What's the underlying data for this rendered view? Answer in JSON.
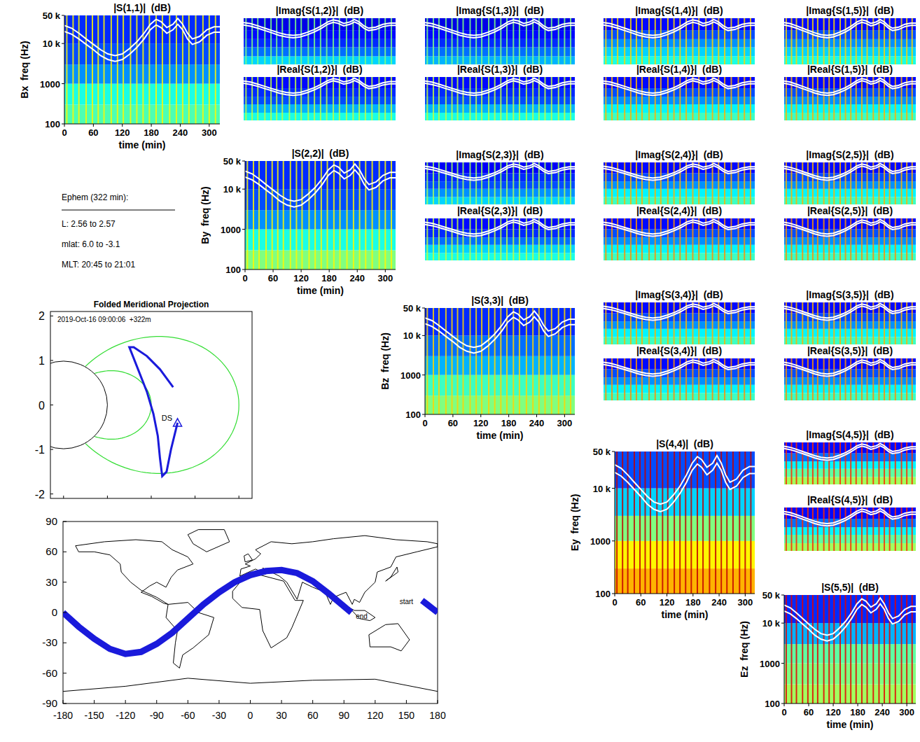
{
  "chart_data": [
    {
      "type": "spectrogram_matrix",
      "xlim": [
        0,
        322
      ],
      "ylim": [
        100,
        50000
      ],
      "log": "y",
      "xticks": [
        0,
        60,
        120,
        180,
        240,
        300
      ],
      "yticks": [
        100,
        1000,
        {
          "value": 10000,
          "label": "10 k"
        },
        {
          "value": 50000,
          "label": "50 k"
        }
      ],
      "xlabel": "time (min)",
      "band_edges": [
        100,
        300,
        1000,
        3000,
        10000,
        50000
      ],
      "clim": [
        -60,
        0
      ],
      "impulse_times": [
        5,
        18,
        30,
        45,
        58,
        70,
        82,
        97,
        110,
        122,
        137,
        150,
        163,
        176,
        190,
        203,
        218,
        232,
        245,
        258,
        272,
        287,
        300,
        313
      ],
      "cutoff_curves": {
        "x": [
          0,
          15,
          30,
          45,
          60,
          75,
          90,
          105,
          120,
          135,
          150,
          165,
          178,
          190,
          200,
          212,
          225,
          235,
          245,
          255,
          265,
          280,
          295,
          310,
          322
        ],
        "upper": [
          28000,
          24000,
          18000,
          13000,
          9500,
          7000,
          5500,
          5000,
          5500,
          7500,
          11000,
          18000,
          30000,
          40000,
          35000,
          25000,
          30000,
          42000,
          30000,
          18000,
          13000,
          15000,
          22000,
          26000,
          26000
        ],
        "lower": [
          20000,
          17000,
          13000,
          9500,
          7000,
          5000,
          4000,
          3600,
          4000,
          5400,
          8000,
          13000,
          22000,
          29000,
          25000,
          18000,
          22000,
          30000,
          22000,
          13000,
          9500,
          11000,
          16000,
          19000,
          19000
        ]
      },
      "panels": [
        {
          "title": "|S(1,1)|  (dB)",
          "ylabel": "Bx  freq (Hz)",
          "levels": [
            -33,
            -36,
            -44,
            -48,
            -50
          ],
          "impulse_level": -22
        },
        {
          "title": "|Imag{S(1,2)}|  (dB)",
          "levels": [
            -40,
            -46,
            -50,
            -52,
            -54
          ],
          "impulse_level": -30
        },
        {
          "title": "|Real{S(1,2)}|  (dB)",
          "levels": [
            -36,
            -42,
            -48,
            -50,
            -52
          ],
          "impulse_level": -26
        },
        {
          "title": "|Imag{S(1,3)}|  (dB)",
          "levels": [
            -42,
            -46,
            -50,
            -52,
            -54
          ],
          "impulse_level": -30
        },
        {
          "title": "|Real{S(1,3)}|  (dB)",
          "levels": [
            -36,
            -42,
            -48,
            -50,
            -52
          ],
          "impulse_level": -26
        },
        {
          "title": "|Imag{S(1,4)}|  (dB)",
          "levels": [
            -36,
            -40,
            -44,
            -48,
            -52
          ],
          "impulse_level": -20
        },
        {
          "title": "|Real{S(1,4)}|  (dB)",
          "levels": [
            -34,
            -38,
            -44,
            -48,
            -52
          ],
          "impulse_level": -18
        },
        {
          "title": "|Imag{S(1,5)}|  (dB)",
          "levels": [
            -36,
            -40,
            -44,
            -48,
            -52
          ],
          "impulse_level": -20
        },
        {
          "title": "|Real{S(1,5)}|  (dB)",
          "levels": [
            -34,
            -38,
            -44,
            -48,
            -52
          ],
          "impulse_level": -18
        },
        {
          "title": "|S(2,2)|  (dB)",
          "ylabel": "By  freq (Hz)",
          "levels": [
            -30,
            -36,
            -44,
            -48,
            -50
          ],
          "impulse_level": -22
        },
        {
          "title": "|Imag{S(2,3)}|  (dB)",
          "levels": [
            -40,
            -44,
            -48,
            -50,
            -53
          ],
          "impulse_level": -28
        },
        {
          "title": "|Real{S(2,3)}|  (dB)",
          "levels": [
            -36,
            -40,
            -46,
            -50,
            -52
          ],
          "impulse_level": -26
        },
        {
          "title": "|Imag{S(2,4)}|  (dB)",
          "levels": [
            -34,
            -38,
            -44,
            -48,
            -52
          ],
          "impulse_level": -18
        },
        {
          "title": "|Real{S(2,4)}|  (dB)",
          "levels": [
            -34,
            -38,
            -44,
            -48,
            -52
          ],
          "impulse_level": -16
        },
        {
          "title": "|Imag{S(2,5)}|  (dB)",
          "levels": [
            -34,
            -38,
            -44,
            -48,
            -52
          ],
          "impulse_level": -18
        },
        {
          "title": "|Real{S(2,5)}|  (dB)",
          "levels": [
            -34,
            -38,
            -44,
            -48,
            -52
          ],
          "impulse_level": -16
        },
        {
          "title": "|S(3,3)|  (dB)",
          "ylabel": "Bz  freq (Hz)",
          "levels": [
            -30,
            -34,
            -42,
            -46,
            -50
          ],
          "impulse_level": -20
        },
        {
          "title": "|Imag{S(3,4)}|  (dB)",
          "levels": [
            -34,
            -38,
            -44,
            -48,
            -52
          ],
          "impulse_level": -18
        },
        {
          "title": "|Real{S(3,4)}|  (dB)",
          "levels": [
            -34,
            -38,
            -44,
            -48,
            -52
          ],
          "impulse_level": -16
        },
        {
          "title": "|Imag{S(3,5)}|  (dB)",
          "levels": [
            -34,
            -38,
            -44,
            -48,
            -52
          ],
          "impulse_level": -18
        },
        {
          "title": "|Real{S(3,5)}|  (dB)",
          "levels": [
            -34,
            -38,
            -44,
            -48,
            -52
          ],
          "impulse_level": -16
        },
        {
          "title": "|S(4,4)|  (dB)",
          "ylabel": "Ey  freq (Hz)",
          "levels": [
            -18,
            -22,
            -30,
            -40,
            -48
          ],
          "impulse_level": -4
        },
        {
          "title": "|Imag{S(4,5)}|  (dB)",
          "levels": [
            -28,
            -32,
            -38,
            -46,
            -52
          ],
          "impulse_level": -10
        },
        {
          "title": "|Real{S(4,5)}|  (dB)",
          "levels": [
            -28,
            -32,
            -38,
            -46,
            -52
          ],
          "impulse_level": -10
        },
        {
          "title": "|S(5,5)|  (dB)",
          "ylabel": "Ez  freq (Hz)",
          "levels": [
            -28,
            -30,
            -32,
            -42,
            -50
          ],
          "impulse_level": -6
        }
      ]
    },
    {
      "type": "text",
      "title": "Ephem (322 min):",
      "lines": [
        "L: 2.56 to 2.57",
        "mlat: 6.0 to -3.1",
        "MLT: 20:45 to 21:01"
      ]
    },
    {
      "type": "line",
      "title": "Folded Meridional Projection",
      "annotation": "2019-Oct-16 09:00:06  +322m",
      "xlim": [
        -0.3,
        4.3
      ],
      "ylim": [
        -2.1,
        2.1
      ],
      "xticks": [
        0,
        1,
        2,
        3,
        4
      ],
      "yticks": [
        -2,
        -1,
        0,
        1,
        2
      ],
      "tick_labels": "y",
      "field_line_L": [
        2,
        4
      ],
      "series": [
        {
          "color": "#1a1adb",
          "x": [
            2.5,
            2.2,
            1.9,
            1.6,
            1.5,
            1.7,
            1.9,
            2.05,
            2.15,
            2.2,
            2.25,
            2.35,
            2.45,
            2.6
          ],
          "values": [
            0.4,
            0.8,
            1.1,
            1.3,
            1.3,
            0.8,
            0.3,
            -0.2,
            -0.7,
            -1.2,
            -1.6,
            -1.5,
            -1.0,
            -0.4
          ]
        }
      ],
      "annotations": [
        {
          "text": "DS",
          "x": 2.48,
          "y": -0.35
        }
      ]
    },
    {
      "type": "map",
      "xlim": [
        -180,
        180
      ],
      "ylim": [
        -90,
        90
      ],
      "xticks": [
        -180,
        -150,
        -120,
        -90,
        -60,
        -30,
        0,
        30,
        60,
        90,
        120,
        150,
        180
      ],
      "yticks": [
        -90,
        -60,
        -30,
        0,
        30,
        60,
        90
      ],
      "color": "#1a1adb",
      "lon": [
        165,
        170,
        175,
        180,
        null,
        -180,
        -165,
        -150,
        -135,
        -120,
        -105,
        -90,
        -75,
        -60,
        -45,
        -30,
        -15,
        0,
        15,
        30,
        45,
        60,
        75,
        90,
        97
      ],
      "lat": [
        12,
        8,
        4,
        0,
        null,
        0,
        -14,
        -26,
        -36,
        -41,
        -39,
        -31,
        -20,
        -6,
        8,
        20,
        30,
        37,
        41,
        42,
        39,
        31,
        19,
        6,
        0
      ],
      "labels": [
        {
          "text": "start",
          "lon": 150,
          "lat": 8
        },
        {
          "text": "end",
          "lon": 107,
          "lat": -6
        }
      ]
    }
  ]
}
